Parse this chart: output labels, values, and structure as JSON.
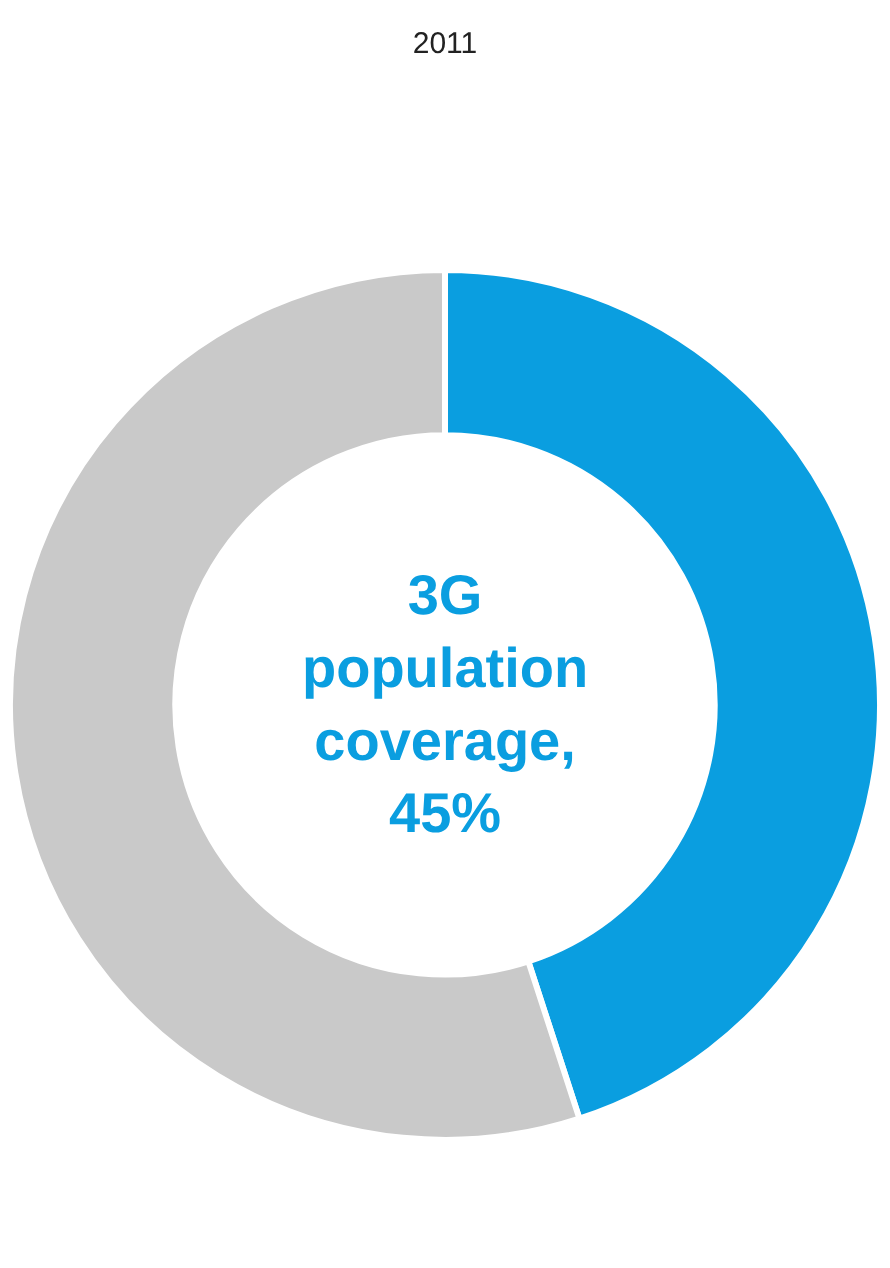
{
  "chart_data": {
    "type": "donut",
    "title": "2011",
    "categories": [
      null,
      null
    ],
    "values": [
      45,
      55
    ],
    "colors": [
      "#0a9ee0",
      "#c9c9c9"
    ],
    "annotations": [
      "3G population coverage, 45%"
    ],
    "legend": false
  }
}
